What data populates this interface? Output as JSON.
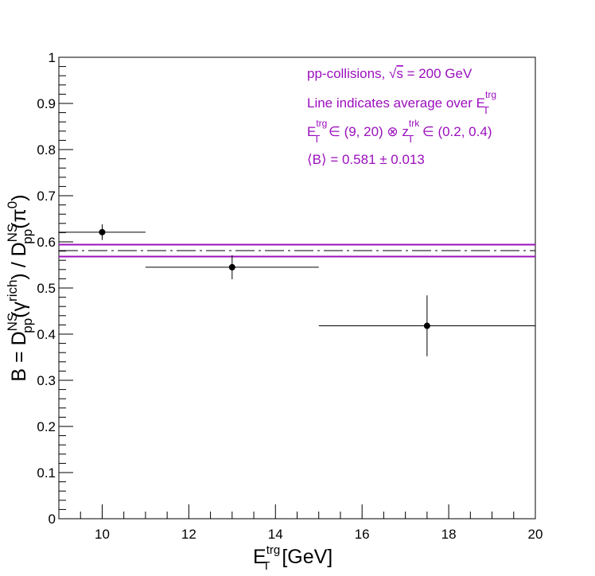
{
  "chart_data": {
    "type": "scatter",
    "xlim": [
      9,
      20
    ],
    "ylim": [
      0,
      1
    ],
    "x_ticks": [
      10,
      12,
      14,
      16,
      18,
      20
    ],
    "y_ticks": [
      0,
      0.1,
      0.2,
      0.3,
      0.4,
      0.5,
      0.6,
      0.7,
      0.8,
      0.9,
      1
    ],
    "x_tick_labels": [
      "10",
      "12",
      "14",
      "16",
      "18",
      "20"
    ],
    "y_tick_labels": [
      "0",
      "0.1",
      "0.2",
      "0.3",
      "0.4",
      "0.5",
      "0.6",
      "0.7",
      "0.8",
      "0.9",
      "1"
    ],
    "xlabel": {
      "base": "E",
      "sub": "T",
      "sup": "trg",
      "unit": " [GeV]"
    },
    "ylabel": {
      "p1": "B = D",
      "p1_sup": "NS",
      "p1_sub": "pp",
      "p2": "(γ",
      "p2_sup": "rich",
      "p3": ") / D",
      "p3_sup": "NS",
      "p3_sub": "pp",
      "p4": "(π",
      "p4_sup": "0",
      "p5": ")"
    },
    "points": [
      {
        "x": 10.0,
        "y": 0.621,
        "xlo": 9.0,
        "xhi": 11.0,
        "ylo": 0.604,
        "yhi": 0.638
      },
      {
        "x": 13.0,
        "y": 0.545,
        "xlo": 11.0,
        "xhi": 15.0,
        "ylo": 0.519,
        "yhi": 0.571
      },
      {
        "x": 17.5,
        "y": 0.418,
        "xlo": 15.0,
        "xhi": 20.0,
        "ylo": 0.352,
        "yhi": 0.484
      }
    ],
    "average": {
      "value": 0.581,
      "low": 0.568,
      "high": 0.594
    },
    "annotation_color": "#9b0fbd",
    "annotations": {
      "line1_prefix": "pp-collisions, ",
      "line1_sqrt": "√",
      "line1_s": "s",
      "line1_suffix": " = 200 GeV",
      "line2": "Line indicates average over E",
      "line2_sub": "T",
      "line2_sup": "trg",
      "line3_base": "E",
      "line3_sub": "T",
      "line3_sup": "trg",
      "line3_mid": " ∈ (9, 20) ⊗ z",
      "line3_sub2": "T",
      "line3_sup2": "trk",
      "line3_end": " ∈ (0.2, 0.4)",
      "line4": "⟨B⟩ = 0.581 ± 0.013"
    }
  }
}
